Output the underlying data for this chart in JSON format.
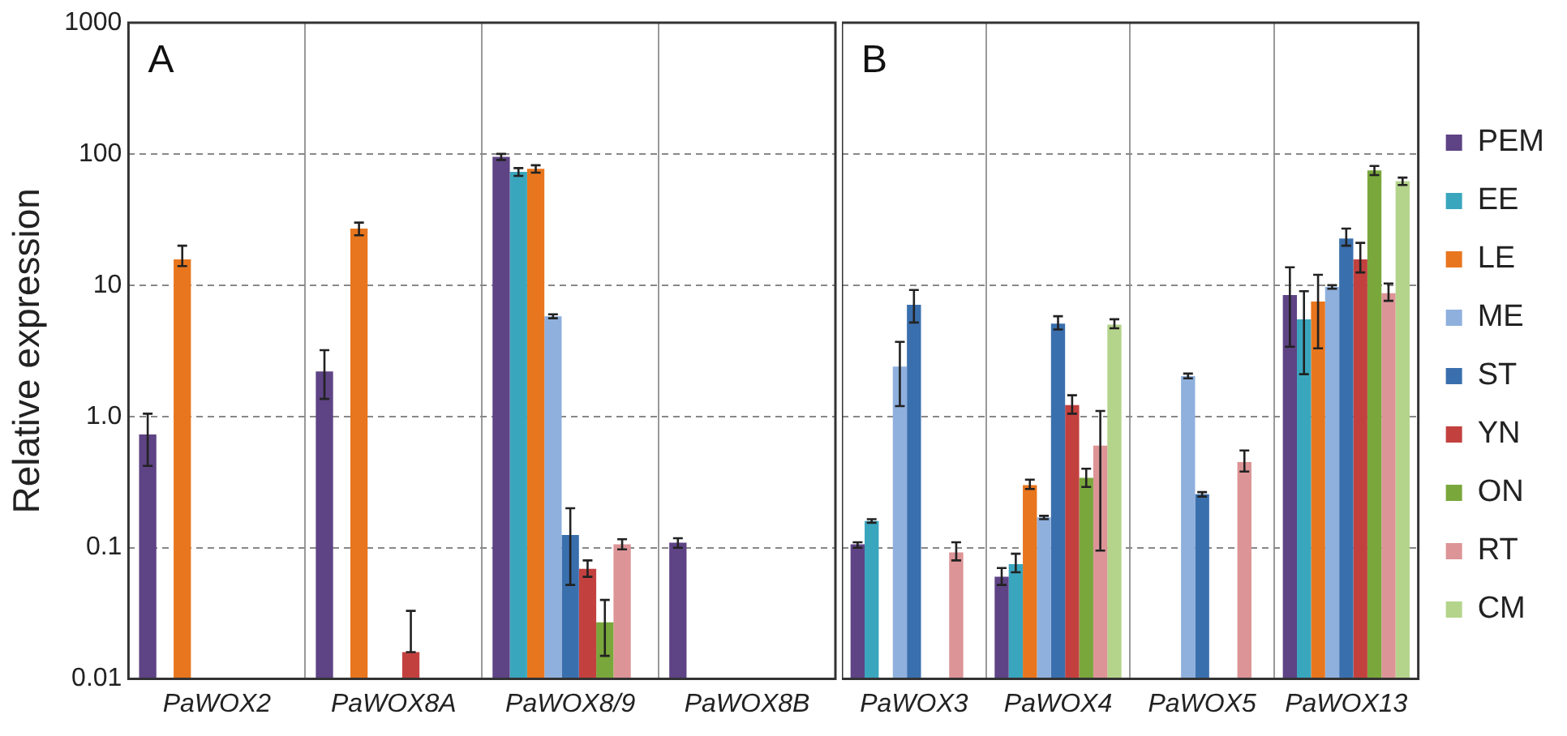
{
  "chart_data": [
    {
      "type": "bar",
      "ylabel": "Relative expression",
      "annotations": [
        "A"
      ],
      "categories": [
        "PaWOX2",
        "PaWOX8A",
        "PaWOX8/9",
        "PaWOX8B"
      ],
      "log": "y",
      "ylim": [
        0.01,
        1000
      ],
      "yticks": [
        0.01,
        0.1,
        {
          "value": 1,
          "label": "1.0"
        },
        10,
        100,
        1000
      ],
      "grid": true,
      "legend": false,
      "series": [
        {
          "color": "#5e4385",
          "values": [
            0.73,
            2.2,
            95,
            0.109
          ],
          "errors": [
            [
              0.42,
              1.05
            ],
            [
              1.36,
              3.2
            ],
            [
              90,
              100
            ],
            [
              0.1,
              0.118
            ]
          ]
        },
        {
          "color": "#3aa6be",
          "values": [
            null,
            null,
            73,
            null
          ],
          "errors": [
            null,
            null,
            [
              68,
              78
            ],
            null
          ]
        },
        {
          "color": "#e8761e",
          "values": [
            15.7,
            27,
            77,
            null
          ],
          "errors": [
            [
              14,
              20
            ],
            [
              24,
              30
            ],
            [
              72,
              82
            ],
            null
          ]
        },
        {
          "color": "#8fb0dd",
          "values": [
            null,
            null,
            5.8,
            null
          ],
          "errors": [
            null,
            null,
            [
              5.6,
              6
            ],
            null
          ]
        },
        {
          "color": "#3a6fad",
          "values": [
            null,
            null,
            0.125,
            null
          ],
          "errors": [
            null,
            null,
            [
              0.052,
              0.2
            ],
            null
          ]
        },
        {
          "color": "#c2413f",
          "values": [
            null,
            0.016,
            0.069,
            null
          ],
          "errors": [
            null,
            [
              0.016,
              0.033
            ],
            [
              0.06,
              0.08
            ],
            null
          ]
        },
        {
          "color": "#7aa73c",
          "values": [
            null,
            null,
            0.027,
            null
          ],
          "errors": [
            null,
            null,
            [
              0.015,
              0.04
            ],
            null
          ]
        },
        {
          "color": "#dc9496",
          "values": [
            null,
            null,
            0.106,
            null
          ],
          "errors": [
            null,
            null,
            [
              0.097,
              0.116
            ],
            null
          ]
        },
        {
          "color": "#b4d48c",
          "values": [
            null,
            null,
            null,
            null
          ]
        }
      ]
    },
    {
      "type": "bar",
      "annotations": [
        "B"
      ],
      "categories": [
        "PaWOX3",
        "PaWOX4",
        "PaWOX5",
        "PaWOX13"
      ],
      "log": "y",
      "ylim": [
        0.01,
        1000
      ],
      "yticks": [
        0.01,
        0.1,
        1,
        10,
        100,
        1000
      ],
      "grid": true,
      "legend": "right",
      "tick_labels": "x",
      "series": [
        {
          "name": "PEM",
          "color": "#5e4385",
          "values": [
            0.106,
            0.06,
            null,
            8.4
          ],
          "errors": [
            [
              0.1,
              0.11
            ],
            [
              0.052,
              0.07
            ],
            null,
            [
              3.4,
              13.7
            ]
          ]
        },
        {
          "name": "EE",
          "color": "#3aa6be",
          "values": [
            0.16,
            0.075,
            null,
            5.5
          ],
          "errors": [
            [
              0.155,
              0.165
            ],
            [
              0.065,
              0.09
            ],
            null,
            [
              2.1,
              9
            ]
          ]
        },
        {
          "name": "LE",
          "color": "#e8761e",
          "values": [
            null,
            0.3,
            null,
            7.5
          ],
          "errors": [
            null,
            [
              0.28,
              0.33
            ],
            null,
            [
              3.3,
              12
            ]
          ]
        },
        {
          "name": "ME",
          "color": "#8fb0dd",
          "values": [
            2.4,
            0.17,
            2.03,
            9.7
          ],
          "errors": [
            [
              1.2,
              3.7
            ],
            [
              0.165,
              0.175
            ],
            [
              1.95,
              2.12
            ],
            [
              9.4,
              10
            ]
          ]
        },
        {
          "name": "ST",
          "color": "#3a6fad",
          "values": [
            7.1,
            5.1,
            0.255,
            22.7
          ],
          "errors": [
            [
              5.2,
              9.2
            ],
            [
              4.6,
              5.8
            ],
            [
              0.245,
              0.265
            ],
            [
              20,
              27
            ]
          ]
        },
        {
          "name": "YN",
          "color": "#c2413f",
          "values": [
            null,
            1.22,
            null,
            15.7
          ],
          "errors": [
            null,
            [
              1.05,
              1.45
            ],
            null,
            [
              12.5,
              21
            ]
          ]
        },
        {
          "name": "ON",
          "color": "#7aa73c",
          "values": [
            null,
            0.34,
            null,
            75
          ],
          "errors": [
            null,
            [
              0.29,
              0.4
            ],
            null,
            [
              69,
              81
            ]
          ]
        },
        {
          "name": "RT",
          "color": "#dc9496",
          "values": [
            0.092,
            0.6,
            0.45,
            8.7
          ],
          "errors": [
            [
              0.08,
              0.11
            ],
            [
              0.095,
              1.1
            ],
            [
              0.38,
              0.55
            ],
            [
              7.6,
              10.3
            ]
          ]
        },
        {
          "name": "CM",
          "color": "#b4d48c",
          "values": [
            null,
            5,
            null,
            62
          ],
          "errors": [
            null,
            [
              4.7,
              5.5
            ],
            null,
            [
              58,
              66
            ]
          ]
        }
      ]
    }
  ]
}
